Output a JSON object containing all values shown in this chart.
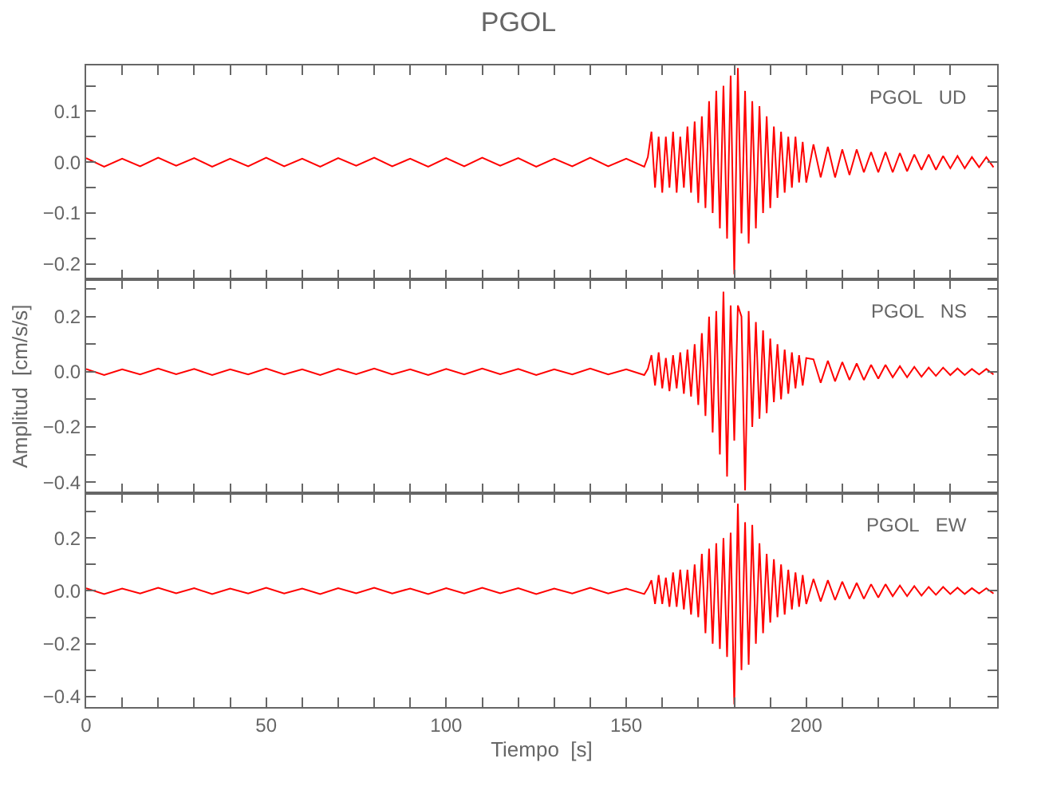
{
  "chart_data": [
    {
      "type": "line",
      "title": "PGOL",
      "annotations": [
        "PGOL   UD"
      ],
      "tick_labels": "y",
      "marker": "none",
      "line_style": "solid",
      "x": [
        0,
        5,
        10,
        15,
        20,
        25,
        30,
        35,
        40,
        45,
        50,
        55,
        60,
        65,
        70,
        75,
        80,
        85,
        90,
        95,
        100,
        105,
        110,
        115,
        120,
        125,
        130,
        135,
        140,
        145,
        150,
        155,
        156,
        157,
        158,
        159,
        160,
        161,
        162,
        163,
        164,
        165,
        166,
        167,
        168,
        169,
        170,
        171,
        172,
        173,
        174,
        175,
        176,
        177,
        178,
        179,
        180,
        181,
        182,
        183,
        184,
        185,
        186,
        187,
        188,
        189,
        190,
        191,
        192,
        193,
        194,
        195,
        196,
        197,
        198,
        199,
        200,
        202,
        204,
        206,
        208,
        210,
        212,
        214,
        216,
        218,
        220,
        222,
        224,
        226,
        228,
        230,
        232,
        234,
        236,
        238,
        240,
        242,
        244,
        246,
        248,
        250,
        252
      ],
      "series": [
        {
          "color": "#ff0000",
          "values": [
            0.008,
            -0.009,
            0.007,
            -0.008,
            0.009,
            -0.007,
            0.008,
            -0.009,
            0.007,
            -0.008,
            0.009,
            -0.008,
            0.007,
            -0.009,
            0.008,
            -0.007,
            0.009,
            -0.008,
            0.007,
            -0.009,
            0.008,
            -0.008,
            0.009,
            -0.007,
            0.008,
            -0.009,
            0.007,
            -0.008,
            0.009,
            -0.008,
            0.007,
            -0.009,
            0.01,
            0.06,
            -0.05,
            0.05,
            -0.06,
            0.05,
            -0.05,
            0.06,
            -0.06,
            0.05,
            -0.05,
            0.07,
            -0.06,
            0.08,
            -0.08,
            0.09,
            -0.09,
            0.12,
            -0.1,
            0.14,
            -0.13,
            0.15,
            -0.15,
            0.17,
            -0.22,
            0.185,
            -0.14,
            0.14,
            -0.16,
            0.12,
            -0.13,
            0.11,
            -0.1,
            0.09,
            -0.09,
            0.07,
            -0.07,
            0.06,
            -0.06,
            0.05,
            -0.05,
            0.05,
            -0.04,
            0.04,
            -0.04,
            0.035,
            -0.03,
            0.03,
            -0.03,
            0.025,
            -0.025,
            0.025,
            -0.02,
            0.02,
            -0.02,
            0.02,
            -0.02,
            0.018,
            -0.018,
            0.015,
            -0.015,
            0.015,
            -0.015,
            0.012,
            -0.012,
            0.012,
            -0.012,
            0.01,
            -0.01,
            0.01,
            -0.01
          ]
        }
      ],
      "xlim": [
        0,
        253
      ],
      "xticks": [
        0,
        {
          "value": 10,
          "label": null
        },
        {
          "value": 20,
          "label": null
        },
        {
          "value": 30,
          "label": null
        },
        {
          "value": 40,
          "label": null
        },
        50,
        {
          "value": 60,
          "label": null
        },
        {
          "value": 70,
          "label": null
        },
        {
          "value": 80,
          "label": null
        },
        {
          "value": 90,
          "label": null
        },
        100,
        {
          "value": 110,
          "label": null
        },
        {
          "value": 120,
          "label": null
        },
        {
          "value": 130,
          "label": null
        },
        {
          "value": 140,
          "label": null
        },
        150,
        {
          "value": 160,
          "label": null
        },
        {
          "value": 170,
          "label": null
        },
        {
          "value": 180,
          "label": null
        },
        {
          "value": 190,
          "label": null
        },
        200,
        {
          "value": 210,
          "label": null
        },
        {
          "value": 220,
          "label": null
        },
        {
          "value": 230,
          "label": null
        },
        {
          "value": 240,
          "label": null
        }
      ],
      "ylim": [
        -0.23,
        0.19
      ],
      "yticks": [
        {
          "value": -0.2,
          "label": "−0.2"
        },
        {
          "value": -0.15,
          "label": null
        },
        {
          "value": -0.1,
          "label": "−0.1"
        },
        {
          "value": -0.05,
          "label": null
        },
        {
          "value": 0,
          "label": "0.0"
        },
        {
          "value": 0.05,
          "label": null
        },
        {
          "value": 0.1,
          "label": "0.1"
        },
        {
          "value": 0.15,
          "label": null
        }
      ]
    },
    {
      "type": "line",
      "ylabel": "Amplitud  [cm/s/s]",
      "annotations": [
        "PGOL   NS"
      ],
      "tick_labels": "y",
      "marker": "none",
      "line_style": "solid",
      "x": [
        0,
        5,
        10,
        15,
        20,
        25,
        30,
        35,
        40,
        45,
        50,
        55,
        60,
        65,
        70,
        75,
        80,
        85,
        90,
        95,
        100,
        105,
        110,
        115,
        120,
        125,
        130,
        135,
        140,
        145,
        150,
        155,
        156,
        157,
        158,
        159,
        160,
        161,
        162,
        163,
        164,
        165,
        166,
        167,
        168,
        169,
        170,
        171,
        172,
        173,
        174,
        175,
        176,
        177,
        178,
        179,
        180,
        181,
        182,
        183,
        184,
        185,
        186,
        187,
        188,
        189,
        190,
        191,
        192,
        193,
        194,
        195,
        196,
        197,
        198,
        199,
        200,
        202,
        204,
        206,
        208,
        210,
        212,
        214,
        216,
        218,
        220,
        222,
        224,
        226,
        228,
        230,
        232,
        234,
        236,
        238,
        240,
        242,
        244,
        246,
        248,
        250,
        252
      ],
      "series": [
        {
          "color": "#ff0000",
          "values": [
            0.01,
            -0.012,
            0.009,
            -0.01,
            0.012,
            -0.009,
            0.01,
            -0.012,
            0.009,
            -0.01,
            0.012,
            -0.01,
            0.009,
            -0.012,
            0.01,
            -0.009,
            0.012,
            -0.01,
            0.009,
            -0.012,
            0.01,
            -0.01,
            0.012,
            -0.009,
            0.01,
            -0.012,
            0.009,
            -0.01,
            0.012,
            -0.01,
            0.009,
            -0.012,
            0.01,
            0.06,
            -0.05,
            0.07,
            -0.06,
            0.05,
            -0.07,
            0.06,
            -0.06,
            0.07,
            -0.08,
            0.08,
            -0.09,
            0.1,
            -0.12,
            0.14,
            -0.16,
            0.2,
            -0.22,
            0.22,
            -0.3,
            0.29,
            -0.38,
            0.24,
            -0.25,
            0.24,
            0.2,
            -0.43,
            0.22,
            -0.2,
            0.18,
            -0.17,
            0.15,
            -0.15,
            0.12,
            -0.11,
            0.1,
            -0.1,
            0.08,
            -0.08,
            0.07,
            -0.06,
            0.06,
            -0.05,
            0.05,
            0.045,
            -0.04,
            0.04,
            -0.035,
            0.035,
            -0.03,
            0.03,
            -0.03,
            0.025,
            -0.025,
            0.025,
            -0.02,
            0.02,
            -0.02,
            0.018,
            -0.018,
            0.015,
            -0.015,
            0.015,
            -0.012,
            0.012,
            -0.012,
            0.01,
            -0.01,
            0.01,
            -0.01
          ]
        }
      ],
      "xlim": [
        0,
        253
      ],
      "xticks": [
        0,
        {
          "value": 10,
          "label": null
        },
        {
          "value": 20,
          "label": null
        },
        {
          "value": 30,
          "label": null
        },
        {
          "value": 40,
          "label": null
        },
        50,
        {
          "value": 60,
          "label": null
        },
        {
          "value": 70,
          "label": null
        },
        {
          "value": 80,
          "label": null
        },
        {
          "value": 90,
          "label": null
        },
        100,
        {
          "value": 110,
          "label": null
        },
        {
          "value": 120,
          "label": null
        },
        {
          "value": 130,
          "label": null
        },
        {
          "value": 140,
          "label": null
        },
        150,
        {
          "value": 160,
          "label": null
        },
        {
          "value": 170,
          "label": null
        },
        {
          "value": 180,
          "label": null
        },
        {
          "value": 190,
          "label": null
        },
        200,
        {
          "value": 210,
          "label": null
        },
        {
          "value": 220,
          "label": null
        },
        {
          "value": 230,
          "label": null
        },
        {
          "value": 240,
          "label": null
        }
      ],
      "ylim": [
        -0.44,
        0.335
      ],
      "yticks": [
        {
          "value": -0.4,
          "label": "−0.4"
        },
        {
          "value": -0.3,
          "label": null
        },
        {
          "value": -0.2,
          "label": "−0.2"
        },
        {
          "value": -0.1,
          "label": null
        },
        {
          "value": 0,
          "label": "0.0"
        },
        {
          "value": 0.1,
          "label": null
        },
        {
          "value": 0.2,
          "label": "0.2"
        },
        {
          "value": 0.3,
          "label": null
        }
      ]
    },
    {
      "type": "line",
      "xlabel": "Tiempo  [s]",
      "annotations": [
        "PGOL   EW"
      ],
      "marker": "none",
      "line_style": "solid",
      "x": [
        0,
        5,
        10,
        15,
        20,
        25,
        30,
        35,
        40,
        45,
        50,
        55,
        60,
        65,
        70,
        75,
        80,
        85,
        90,
        95,
        100,
        105,
        110,
        115,
        120,
        125,
        130,
        135,
        140,
        145,
        150,
        155,
        156,
        157,
        158,
        159,
        160,
        161,
        162,
        163,
        164,
        165,
        166,
        167,
        168,
        169,
        170,
        171,
        172,
        173,
        174,
        175,
        176,
        177,
        178,
        179,
        180,
        181,
        182,
        183,
        184,
        185,
        186,
        187,
        188,
        189,
        190,
        191,
        192,
        193,
        194,
        195,
        196,
        197,
        198,
        199,
        200,
        202,
        204,
        206,
        208,
        210,
        212,
        214,
        216,
        218,
        220,
        222,
        224,
        226,
        228,
        230,
        232,
        234,
        236,
        238,
        240,
        242,
        244,
        246,
        248,
        250,
        252
      ],
      "series": [
        {
          "color": "#ff0000",
          "values": [
            0.01,
            -0.012,
            0.009,
            -0.01,
            0.012,
            -0.009,
            0.01,
            -0.012,
            0.009,
            -0.01,
            0.012,
            -0.01,
            0.009,
            -0.012,
            0.01,
            -0.009,
            0.012,
            -0.01,
            0.009,
            -0.012,
            0.01,
            -0.01,
            0.012,
            -0.009,
            0.01,
            -0.012,
            0.009,
            -0.01,
            0.012,
            -0.01,
            0.009,
            -0.012,
            0.01,
            0.04,
            -0.05,
            0.06,
            -0.05,
            0.05,
            -0.06,
            0.07,
            -0.06,
            0.08,
            -0.07,
            0.08,
            -0.09,
            0.1,
            -0.1,
            0.14,
            -0.16,
            0.16,
            -0.2,
            0.18,
            -0.22,
            0.2,
            -0.25,
            0.22,
            -0.43,
            0.33,
            -0.3,
            0.26,
            -0.28,
            0.25,
            -0.2,
            0.18,
            -0.16,
            0.14,
            -0.12,
            0.12,
            -0.1,
            0.1,
            -0.09,
            0.08,
            -0.07,
            0.07,
            -0.06,
            0.06,
            -0.05,
            0.045,
            -0.04,
            0.04,
            -0.035,
            0.035,
            -0.03,
            0.03,
            -0.03,
            0.025,
            -0.025,
            0.025,
            -0.02,
            0.02,
            -0.02,
            0.018,
            -0.018,
            0.015,
            -0.015,
            0.015,
            -0.012,
            0.012,
            -0.012,
            0.01,
            -0.01,
            0.01,
            -0.01
          ]
        }
      ],
      "xlim": [
        0,
        253
      ],
      "xticks": [
        0,
        {
          "value": 10,
          "label": null
        },
        {
          "value": 20,
          "label": null
        },
        {
          "value": 30,
          "label": null
        },
        {
          "value": 40,
          "label": null
        },
        50,
        {
          "value": 60,
          "label": null
        },
        {
          "value": 70,
          "label": null
        },
        {
          "value": 80,
          "label": null
        },
        {
          "value": 90,
          "label": null
        },
        100,
        {
          "value": 110,
          "label": null
        },
        {
          "value": 120,
          "label": null
        },
        {
          "value": 130,
          "label": null
        },
        {
          "value": 140,
          "label": null
        },
        150,
        {
          "value": 160,
          "label": null
        },
        {
          "value": 170,
          "label": null
        },
        {
          "value": 180,
          "label": null
        },
        {
          "value": 190,
          "label": null
        },
        200,
        {
          "value": 210,
          "label": null
        },
        {
          "value": 220,
          "label": null
        },
        {
          "value": 230,
          "label": null
        },
        {
          "value": 240,
          "label": null
        }
      ],
      "ylim": [
        -0.44,
        0.37
      ],
      "yticks": [
        {
          "value": -0.4,
          "label": "−0.4"
        },
        {
          "value": -0.3,
          "label": null
        },
        {
          "value": -0.2,
          "label": "−0.2"
        },
        {
          "value": -0.1,
          "label": null
        },
        {
          "value": 0,
          "label": "0.0"
        },
        {
          "value": 0.1,
          "label": null
        },
        {
          "value": 0.2,
          "label": "0.2"
        },
        {
          "value": 0.3,
          "label": null
        }
      ]
    }
  ]
}
